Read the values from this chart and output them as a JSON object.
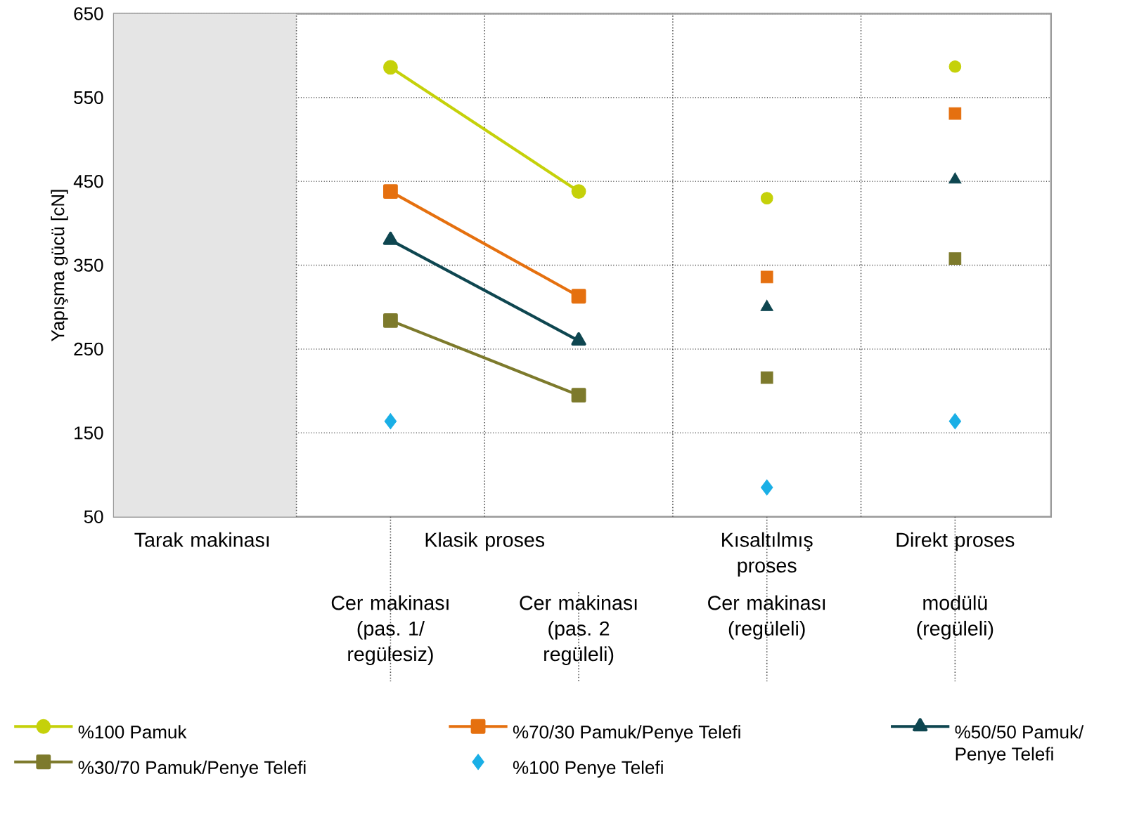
{
  "chart_data": {
    "type": "line",
    "ylabel": "Yapışma gücü [cN]",
    "categories": [
      "Tarak makinası",
      "Cer makinası (pas. 1/ regülesiz)",
      "Cer makinası (pas. 2 regüleli)",
      "Cer makinası (regüleli)",
      "modülü (regüleli)"
    ],
    "annotations": [
      "Klasik proses",
      "Kısaltılmış proses",
      "Direkt proses"
    ],
    "series": [
      {
        "name": "%100 Pamuk",
        "color": "#c5d10a",
        "marker": "circle",
        "values": [
          null,
          586,
          438,
          null,
          null
        ]
      },
      {
        "name": "%70/30 Pamuk/Penye Telefi",
        "color": "#e5700f",
        "marker": "square",
        "values": [
          null,
          438,
          313,
          null,
          null
        ]
      },
      {
        "name": "%50/50 Pamuk/ Penye Telefi",
        "color": "#0e4650",
        "marker": "triangle",
        "values": [
          null,
          380,
          260,
          null,
          null
        ]
      },
      {
        "name": "%30/70 Pamuk/Penye Telefi",
        "color": "#7d7a2c",
        "marker": "square",
        "values": [
          null,
          284,
          195,
          null,
          null
        ]
      },
      {
        "name": "%100 Penye Telefi",
        "type": "scatter",
        "color": "#1aafe6",
        "marker": "diamond",
        "values": [
          null,
          164,
          null,
          85,
          164
        ]
      },
      {
        "type": "scatter",
        "color": "#c5d10a",
        "marker": "circle",
        "values": [
          null,
          null,
          null,
          430,
          587
        ]
      },
      {
        "type": "scatter",
        "color": "#e5700f",
        "marker": "square",
        "values": [
          null,
          null,
          null,
          336,
          531
        ]
      },
      {
        "type": "scatter",
        "color": "#0e4650",
        "marker": "triangle",
        "values": [
          null,
          null,
          null,
          300,
          452
        ]
      },
      {
        "type": "scatter",
        "color": "#7d7a2c",
        "marker": "square",
        "values": [
          null,
          null,
          null,
          216,
          358
        ]
      }
    ],
    "bands": [
      {
        "axis": "x",
        "from": "Tarak makinası",
        "to": "Tarak makinası",
        "color": "#e5e5e5"
      }
    ],
    "ylim": [
      50,
      650
    ],
    "yticks": [
      50,
      150,
      250,
      350,
      450,
      550,
      650
    ],
    "grid": "y",
    "legend": "bottom"
  }
}
